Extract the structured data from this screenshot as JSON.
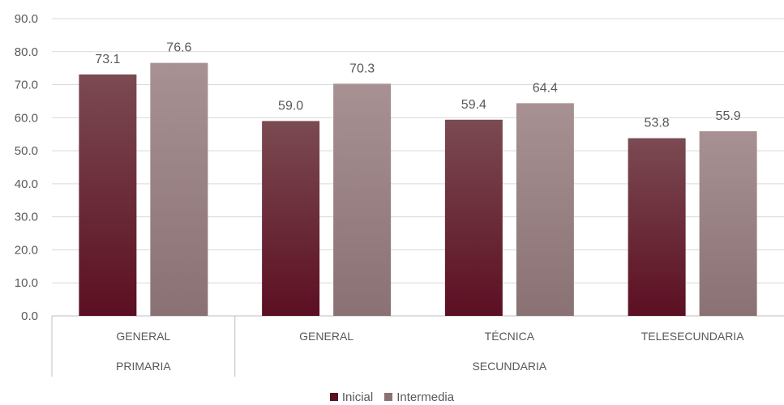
{
  "chart_data": {
    "type": "bar",
    "title": "",
    "xlabel": "",
    "ylabel": "",
    "ylim": [
      0,
      90
    ],
    "yticks": [
      "0.0",
      "10.0",
      "20.0",
      "30.0",
      "40.0",
      "50.0",
      "60.0",
      "70.0",
      "80.0",
      "90.0"
    ],
    "grid": true,
    "legend_position": "bottom",
    "categories": [
      "GENERAL",
      "GENERAL",
      "TÉCNICA",
      "TELESECUNDARIA"
    ],
    "groups": [
      {
        "label": "PRIMARIA",
        "span": 1
      },
      {
        "label": "SECUNDARIA",
        "span": 3
      }
    ],
    "series": [
      {
        "name": "Inicial",
        "values": [
          73.1,
          59.0,
          59.4,
          53.8
        ],
        "labels": [
          "73.1",
          "59.0",
          "59.4",
          "53.8"
        ],
        "color_top": "#7b4a52",
        "color_bottom": "#5c0f22"
      },
      {
        "name": "Intermedia",
        "values": [
          76.6,
          70.3,
          64.4,
          55.9
        ],
        "labels": [
          "76.6",
          "70.3",
          "64.4",
          "55.9"
        ],
        "color_top": "#a89192",
        "color_bottom": "#8a7274"
      }
    ]
  }
}
